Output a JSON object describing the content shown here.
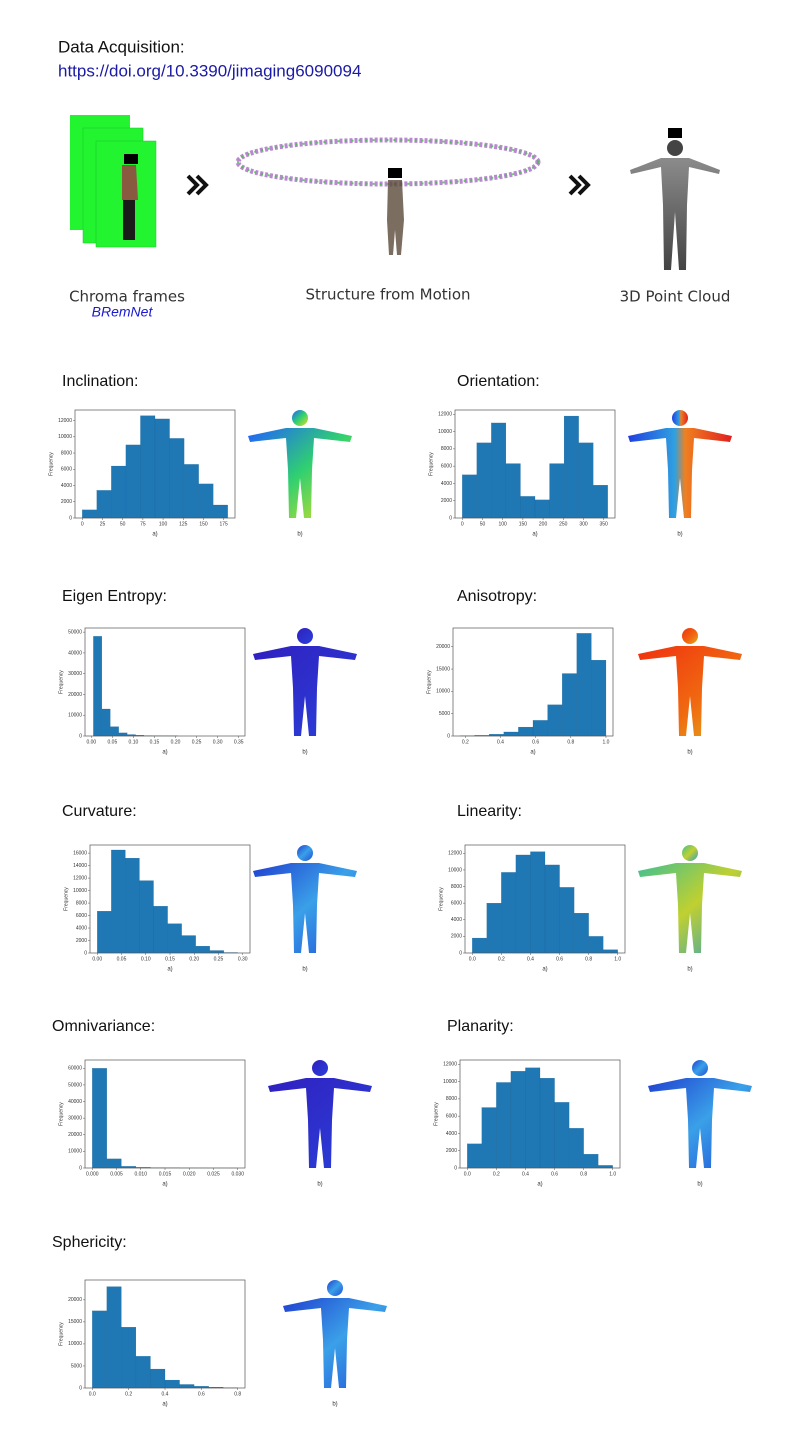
{
  "header": {
    "title": "Data Acquisition:",
    "link": "https://doi.org/10.3390/jimaging6090094"
  },
  "pipeline": {
    "step1": "Chroma frames",
    "step1_note": "BRemNet",
    "step2": "Structure from Motion",
    "step3": "3D Point Cloud"
  },
  "chart_data": [
    {
      "type": "histogram",
      "title": "Inclination:",
      "color": "#1f77b4",
      "ylabel": "Frequency",
      "xlabel": "a)",
      "caption": "b)",
      "bins": [
        0,
        18,
        36,
        54,
        72,
        90,
        108,
        126,
        144,
        162,
        180
      ],
      "values": [
        1000,
        3400,
        6400,
        9000,
        12600,
        12200,
        9800,
        6600,
        4200,
        1600
      ],
      "xlim": [
        -9,
        189
      ],
      "ylim": [
        0,
        13300
      ],
      "xticks": [
        0,
        25,
        50,
        75,
        100,
        125,
        150,
        175
      ],
      "yticks": [
        0,
        2000,
        4000,
        6000,
        8000,
        10000,
        12000
      ]
    },
    {
      "type": "histogram",
      "title": "Orientation:",
      "color": "#1f77b4",
      "ylabel": "Frequency",
      "xlabel": "a)",
      "caption": "b)",
      "bins": [
        0,
        36,
        72,
        108,
        144,
        180,
        216,
        252,
        288,
        324,
        360
      ],
      "values": [
        5000,
        8700,
        11000,
        6300,
        2500,
        2100,
        6300,
        11800,
        8700,
        3800
      ],
      "xlim": [
        -18,
        378
      ],
      "ylim": [
        0,
        12500
      ],
      "xticks": [
        0,
        50,
        100,
        150,
        200,
        250,
        300,
        350
      ],
      "yticks": [
        0,
        2000,
        4000,
        6000,
        8000,
        10000,
        12000
      ]
    },
    {
      "type": "histogram",
      "title": "Eigen Entropy:",
      "color": "#1f77b4",
      "ylabel": "Frequency",
      "xlabel": "a)",
      "caption": "b)",
      "bins": [
        0.005,
        0.025,
        0.045,
        0.065,
        0.085,
        0.105,
        0.125,
        0.145,
        0.165,
        0.185,
        0.205
      ],
      "values": [
        48000,
        13000,
        4500,
        1500,
        700,
        400,
        200,
        120,
        80,
        50
      ],
      "xlim": [
        -0.015,
        0.365
      ],
      "ylim": [
        0,
        52000
      ],
      "xticks": [
        {
          "value": 0,
          "label": "0.00"
        },
        0.05,
        {
          "value": 0.1,
          "label": "0.10"
        },
        0.15,
        {
          "value": 0.2,
          "label": "0.20"
        },
        0.25,
        {
          "value": 0.3,
          "label": "0.30"
        },
        0.35
      ],
      "yticks": [
        0,
        10000,
        20000,
        30000,
        40000,
        50000
      ]
    },
    {
      "type": "histogram",
      "title": "Anisotropy:",
      "color": "#1f77b4",
      "ylabel": "Frequency",
      "xlabel": "a)",
      "caption": "b)",
      "bins": [
        0.17,
        0.253,
        0.336,
        0.419,
        0.502,
        0.585,
        0.668,
        0.751,
        0.834,
        0.917,
        1.0
      ],
      "values": [
        30,
        150,
        400,
        900,
        2000,
        3500,
        7000,
        14000,
        23000,
        17000
      ],
      "xlim": [
        0.13,
        1.04
      ],
      "ylim": [
        0,
        24200
      ],
      "xticks": [
        0.2,
        0.4,
        0.6,
        0.8,
        {
          "value": 1,
          "label": "1.0"
        }
      ],
      "yticks": [
        0,
        5000,
        10000,
        15000,
        20000
      ]
    },
    {
      "type": "histogram",
      "title": "Curvature:",
      "color": "#1f77b4",
      "ylabel": "Frequency",
      "xlabel": "a)",
      "caption": "b)",
      "bins": [
        0,
        0.029,
        0.058,
        0.087,
        0.116,
        0.145,
        0.174,
        0.203,
        0.232,
        0.261,
        0.29
      ],
      "values": [
        6700,
        16500,
        15200,
        11600,
        7500,
        4700,
        2800,
        1100,
        400,
        80
      ],
      "xlim": [
        -0.015,
        0.315
      ],
      "ylim": [
        0,
        17300
      ],
      "xticks": [
        {
          "value": 0,
          "label": "0.00"
        },
        0.05,
        {
          "value": 0.1,
          "label": "0.10"
        },
        0.15,
        {
          "value": 0.2,
          "label": "0.20"
        },
        0.25,
        {
          "value": 0.3,
          "label": "0.30"
        }
      ],
      "yticks": [
        0,
        2000,
        4000,
        6000,
        8000,
        10000,
        12000,
        14000,
        16000
      ]
    },
    {
      "type": "histogram",
      "title": "Linearity:",
      "color": "#1f77b4",
      "ylabel": "Frequency",
      "xlabel": "a)",
      "caption": "b)",
      "bins": [
        0,
        0.1,
        0.2,
        0.3,
        0.4,
        0.5,
        0.6,
        0.7,
        0.8,
        0.9,
        1.0
      ],
      "values": [
        1800,
        6000,
        9700,
        11800,
        12200,
        10600,
        7900,
        4800,
        2000,
        400
      ],
      "xlim": [
        -0.05,
        1.05
      ],
      "ylim": [
        0,
        13000
      ],
      "xticks": [
        {
          "value": 0,
          "label": "0.0"
        },
        0.2,
        0.4,
        0.6,
        0.8,
        {
          "value": 1,
          "label": "1.0"
        }
      ],
      "yticks": [
        0,
        2000,
        4000,
        6000,
        8000,
        10000,
        12000
      ]
    },
    {
      "type": "histogram",
      "title": "Omnivariance:",
      "color": "#1f77b4",
      "ylabel": "Frequency",
      "xlabel": "a)",
      "caption": "b)",
      "bins": [
        0,
        0.003,
        0.006,
        0.009,
        0.012,
        0.015,
        0.018,
        0.021,
        0.024,
        0.027,
        0.03
      ],
      "values": [
        60000,
        5500,
        1000,
        400,
        200,
        100,
        50,
        30,
        20,
        10
      ],
      "xlim": [
        -0.0015,
        0.0315
      ],
      "ylim": [
        0,
        65000
      ],
      "xticks": [
        {
          "value": 0,
          "label": "0.000"
        },
        0.005,
        {
          "value": 0.01,
          "label": "0.010"
        },
        0.015,
        {
          "value": 0.02,
          "label": "0.020"
        },
        0.025,
        {
          "value": 0.03,
          "label": "0.030"
        }
      ],
      "yticks": [
        0,
        10000,
        20000,
        30000,
        40000,
        50000,
        60000
      ]
    },
    {
      "type": "histogram",
      "title": "Planarity:",
      "color": "#1f77b4",
      "ylabel": "Frequency",
      "xlabel": "a)",
      "caption": "b)",
      "bins": [
        0,
        0.1,
        0.2,
        0.3,
        0.4,
        0.5,
        0.6,
        0.7,
        0.8,
        0.9,
        1.0
      ],
      "values": [
        2800,
        7000,
        9900,
        11200,
        11600,
        10400,
        7600,
        4600,
        1600,
        300
      ],
      "xlim": [
        -0.05,
        1.05
      ],
      "ylim": [
        0,
        12500
      ],
      "xticks": [
        {
          "value": 0,
          "label": "0.0"
        },
        0.2,
        0.4,
        0.6,
        0.8,
        {
          "value": 1,
          "label": "1.0"
        }
      ],
      "yticks": [
        0,
        2000,
        4000,
        6000,
        8000,
        10000,
        12000
      ]
    },
    {
      "type": "histogram",
      "title": "Sphericity:",
      "color": "#1f77b4",
      "ylabel": "Frequency",
      "xlabel": "a)",
      "caption": "b)",
      "bins": [
        0,
        0.08,
        0.16,
        0.24,
        0.32,
        0.4,
        0.48,
        0.56,
        0.64,
        0.72,
        0.8
      ],
      "values": [
        17500,
        23000,
        13800,
        7200,
        4300,
        1800,
        800,
        400,
        200,
        80
      ],
      "xlim": [
        -0.04,
        0.84
      ],
      "ylim": [
        0,
        24500
      ],
      "xticks": [
        {
          "value": 0,
          "label": "0.0"
        },
        0.2,
        0.4,
        0.6,
        0.8
      ],
      "yticks": [
        0,
        5000,
        10000,
        15000,
        20000
      ]
    }
  ]
}
